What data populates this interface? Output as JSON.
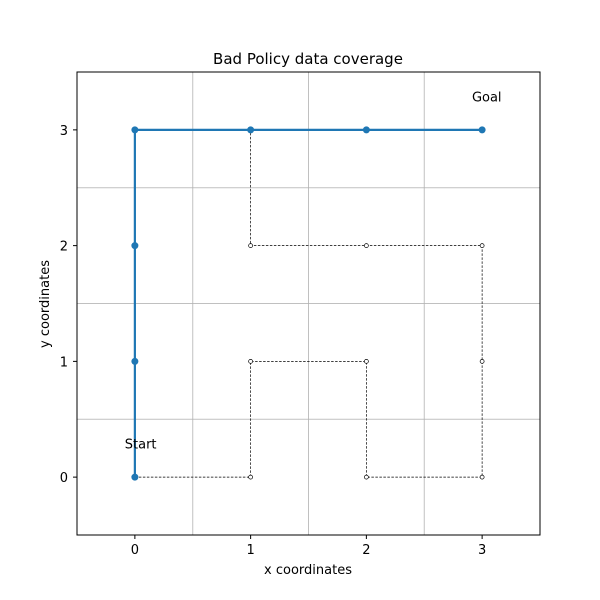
{
  "chart_data": {
    "type": "line",
    "title": "Bad Policy data coverage",
    "xlabel": "x coordinates",
    "ylabel": "y coordinates",
    "xlim": [
      -0.5,
      3.5
    ],
    "ylim": [
      -0.5,
      3.5
    ],
    "xticks": [
      0,
      1,
      2,
      3
    ],
    "yticks": [
      0,
      1,
      2,
      3
    ],
    "grid_lines": {
      "x": [
        0.5,
        1.5,
        2.5
      ],
      "y": [
        0.5,
        1.5,
        2.5
      ]
    },
    "series": [
      {
        "style": "dashed-black-with-hollow-markers",
        "color": "#000000",
        "points": [
          [
            0,
            0
          ],
          [
            1,
            0
          ],
          [
            1,
            1
          ],
          [
            2,
            1
          ],
          [
            2,
            0
          ],
          [
            3,
            0
          ],
          [
            3,
            1
          ],
          [
            3,
            2
          ],
          [
            2,
            2
          ],
          [
            1,
            2
          ],
          [
            1,
            3
          ],
          [
            2,
            3
          ],
          [
            3,
            3
          ]
        ]
      },
      {
        "style": "solid-blue-with-filled-markers",
        "color": "#1f77b4",
        "points": [
          [
            0,
            0
          ],
          [
            0,
            1
          ],
          [
            0,
            2
          ],
          [
            0,
            3
          ],
          [
            1,
            3
          ],
          [
            2,
            3
          ],
          [
            3,
            3
          ]
        ]
      }
    ],
    "annotations": [
      {
        "text": "Start",
        "x": 0.05,
        "y": 0.29
      },
      {
        "text": "Goal",
        "x": 3.04,
        "y": 3.29
      }
    ]
  }
}
